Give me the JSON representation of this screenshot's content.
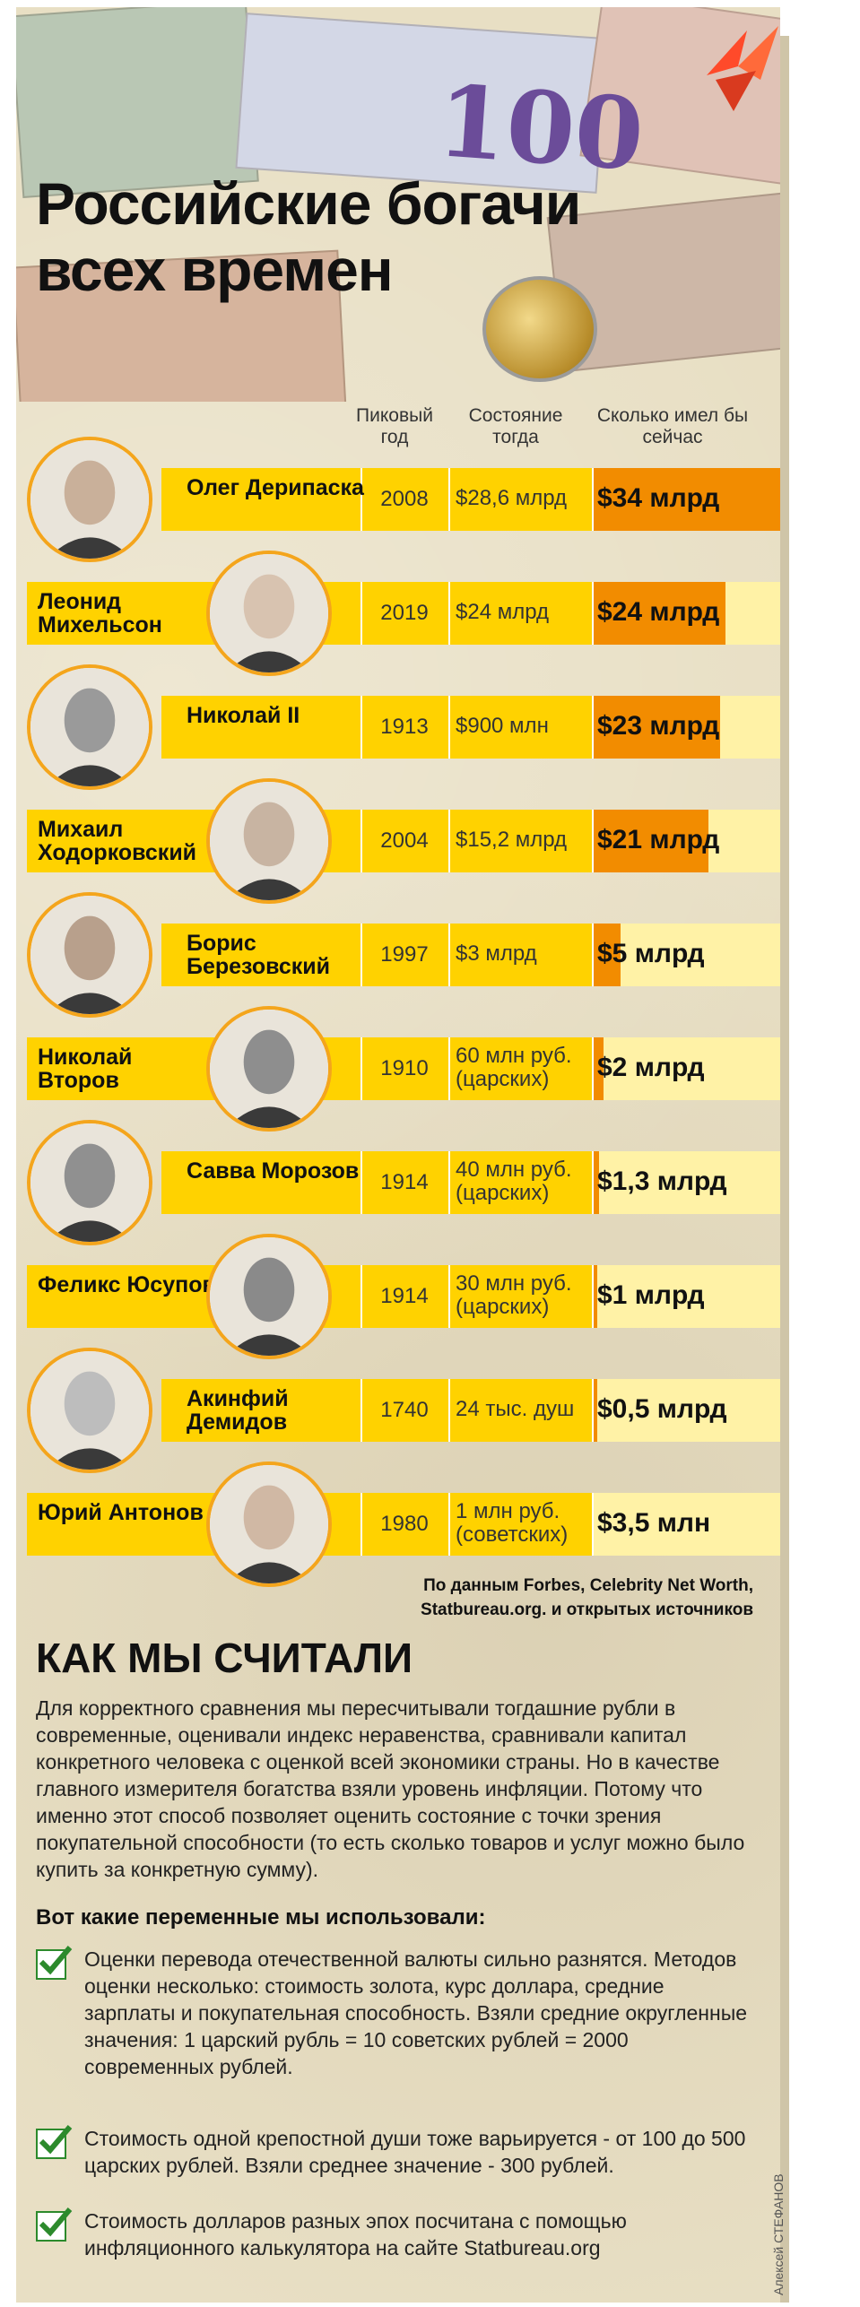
{
  "title_line1": "Российские богачи",
  "title_line2": "всех времен",
  "banknote_text": "100",
  "columns": {
    "year": "Пиковый год",
    "wealth": "Состояние тогда",
    "now": "Сколько имел бы сейчас"
  },
  "rows": [
    {
      "name": "Олег Дерипаска",
      "year": "2008",
      "wealth": "$28,6 млрд",
      "now": "$34 млрд",
      "now_fraction": 1.0,
      "photo_side": "left"
    },
    {
      "name": "Леонид Михельсон",
      "year": "2019",
      "wealth": "$24 млрд",
      "now": "$24 млрд",
      "now_fraction": 0.71,
      "photo_side": "right"
    },
    {
      "name": "Николай II",
      "year": "1913",
      "wealth": "$900 млн",
      "now": "$23 млрд",
      "now_fraction": 0.68,
      "photo_side": "left"
    },
    {
      "name": "Михаил Ходорковский",
      "year": "2004",
      "wealth": "$15,2 млрд",
      "now": "$21 млрд",
      "now_fraction": 0.62,
      "photo_side": "right"
    },
    {
      "name": "Борис Березовский",
      "year": "1997",
      "wealth": "$3 млрд",
      "now": "$5 млрд",
      "now_fraction": 0.15,
      "photo_side": "left"
    },
    {
      "name": "Николай Второв",
      "year": "1910",
      "wealth": "60 млн руб. (царских)",
      "now": "$2 млрд",
      "now_fraction": 0.06,
      "photo_side": "right"
    },
    {
      "name": "Савва Морозов",
      "year": "1914",
      "wealth": "40 млн руб. (царских)",
      "now": "$1,3 млрд",
      "now_fraction": 0.04,
      "photo_side": "left"
    },
    {
      "name": "Феликс Юсупов",
      "year": "1914",
      "wealth": "30 млн руб. (царских)",
      "now": "$1 млрд",
      "now_fraction": 0.03,
      "photo_side": "right"
    },
    {
      "name": "Акинфий Демидов",
      "year": "1740",
      "wealth": "24 тыс. душ",
      "now": "$0,5 млрд",
      "now_fraction": 0.015,
      "photo_side": "left"
    },
    {
      "name": "Юрий Антонов",
      "year": "1980",
      "wealth": "1 млн руб. (советских)",
      "now": "$3,5 млн",
      "now_fraction": 0.0,
      "photo_side": "right"
    }
  ],
  "source": "По данным Forbes, Celebrity Net Worth, Statbureau.org. и открытых источников",
  "how_title": "КАК МЫ СЧИТАЛИ",
  "how_text": "Для корректного сравнения мы пересчитывали тогдашние рубли в современные, оценивали индекс неравенства, сравнивали капитал конкретного человека с оценкой всей экономики страны. Но в качестве главного измерителя богатства взяли уровень инфляции. Потому что именно этот способ позволяет оценить состояние с точки зрения покупательной способности (то есть сколько товаров и услуг можно было купить за конкретную сумму).",
  "vars_title": "Вот какие переменные мы использовали:",
  "items": [
    "Оценки перевода отечественной валюты сильно разнятся. Методов оценки несколько: стоимость золота, курс доллара, средние зарплаты и покупательная способность. Взяли средние округленные значения: 1 царский рубль = 10 советских рублей = 2000 современных рублей.",
    "Стоимость одной крепостной души тоже варьируется - от 100 до 500 царских рублей. Взяли среднее значение - 300 рублей.",
    "Стоимость долларов разных эпох посчитана с помощью инфляционного калькулятора на сайте Statbureau.org"
  ],
  "credit": "Алексей СТЕФАНОВ",
  "colors": {
    "yellow": "#ffd200",
    "pale_yellow": "#fff2a6",
    "orange": "#f28c00",
    "ring": "#f4a51c",
    "check": "#2c8a2c",
    "logo": "#ff4a2a"
  }
}
